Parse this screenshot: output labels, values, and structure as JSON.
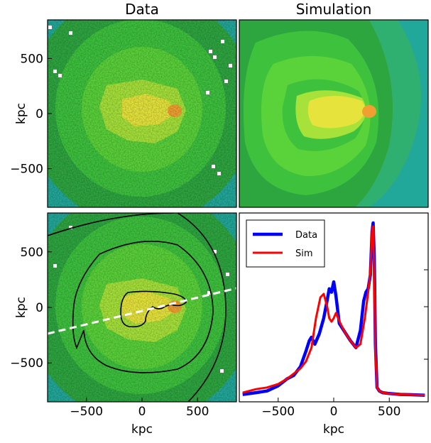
{
  "panel_titles": {
    "data": "Data",
    "sim": "Simulation"
  },
  "axis_labels": {
    "y_top": "kpc",
    "y_bottom": "kpc",
    "x_left": "kpc",
    "x_right": "kpc"
  },
  "colors": {
    "outer": "#22a89a",
    "teal_mid": "#30b070",
    "green_dark": "#2ea640",
    "green": "#3ec23e",
    "green_light": "#5ad23a",
    "yellow_green": "#a6e23a",
    "yellow": "#e6e43c",
    "orange": "#f0a030",
    "contour": "#000000",
    "slit": "#ffffff",
    "data_line": "#0000ff",
    "sim_line": "#ff0000"
  },
  "chart_data": [
    {
      "type": "heatmap",
      "name": "data-map",
      "title": "Data",
      "xlim": [
        -850,
        850
      ],
      "ylim": [
        -850,
        850
      ],
      "yticks": [
        -500,
        0,
        500
      ],
      "ytick_labels": [
        "−500",
        "0",
        "500"
      ],
      "ylabel": "kpc"
    },
    {
      "type": "heatmap",
      "name": "simulation-map",
      "title": "Simulation",
      "xlim": [
        -850,
        850
      ],
      "ylim": [
        -850,
        850
      ]
    },
    {
      "type": "heatmap",
      "name": "data-map-contours",
      "xlim": [
        -850,
        850
      ],
      "ylim": [
        -850,
        850
      ],
      "xticks": [
        -500,
        0,
        500
      ],
      "xtick_labels": [
        "−500",
        "0",
        "500"
      ],
      "yticks": [
        -500,
        0,
        500
      ],
      "ytick_labels": [
        "−500",
        "0",
        "500"
      ],
      "xlabel": "kpc",
      "ylabel": "kpc",
      "contour_levels": 3,
      "slit": {
        "x": [
          -850,
          850
        ],
        "y": [
          -280,
          170
        ]
      }
    },
    {
      "type": "line",
      "name": "profile",
      "xlim": [
        -850,
        850
      ],
      "ylim": [
        0,
        1
      ],
      "xticks": [
        -500,
        0,
        500
      ],
      "xtick_labels": [
        "−500",
        "0",
        "500"
      ],
      "xlabel": "kpc",
      "legend": "top-left",
      "series": [
        {
          "name": "Data",
          "x": [
            -820,
            -700,
            -600,
            -500,
            -420,
            -360,
            -300,
            -250,
            -220,
            -200,
            -170,
            -130,
            -90,
            -60,
            -40,
            -20,
            0,
            20,
            50,
            100,
            150,
            200,
            240,
            270,
            290,
            310,
            330,
            345,
            355,
            365,
            375,
            390,
            410,
            440,
            500,
            600,
            700,
            820
          ],
          "y": [
            0.01,
            0.02,
            0.03,
            0.06,
            0.1,
            0.12,
            0.17,
            0.26,
            0.32,
            0.34,
            0.3,
            0.36,
            0.45,
            0.55,
            0.62,
            0.6,
            0.66,
            0.58,
            0.42,
            0.37,
            0.32,
            0.28,
            0.38,
            0.55,
            0.6,
            0.62,
            0.7,
            0.95,
            1.0,
            0.8,
            0.3,
            0.05,
            0.03,
            0.02,
            0.015,
            0.01,
            0.008,
            0.005
          ]
        },
        {
          "name": "Sim",
          "x": [
            -820,
            -700,
            -600,
            -500,
            -420,
            -360,
            -300,
            -250,
            -200,
            -160,
            -120,
            -90,
            -60,
            -40,
            -20,
            0,
            20,
            60,
            100,
            150,
            200,
            240,
            280,
            310,
            330,
            345,
            355,
            365,
            375,
            390,
            410,
            440,
            500,
            600,
            700,
            820
          ],
          "y": [
            0.02,
            0.04,
            0.05,
            0.07,
            0.1,
            0.13,
            0.16,
            0.2,
            0.28,
            0.45,
            0.57,
            0.59,
            0.52,
            0.45,
            0.43,
            0.45,
            0.48,
            0.42,
            0.37,
            0.32,
            0.28,
            0.3,
            0.45,
            0.6,
            0.72,
            0.96,
            0.98,
            0.7,
            0.25,
            0.05,
            0.03,
            0.02,
            0.015,
            0.01,
            0.008,
            0.005
          ]
        }
      ]
    }
  ]
}
